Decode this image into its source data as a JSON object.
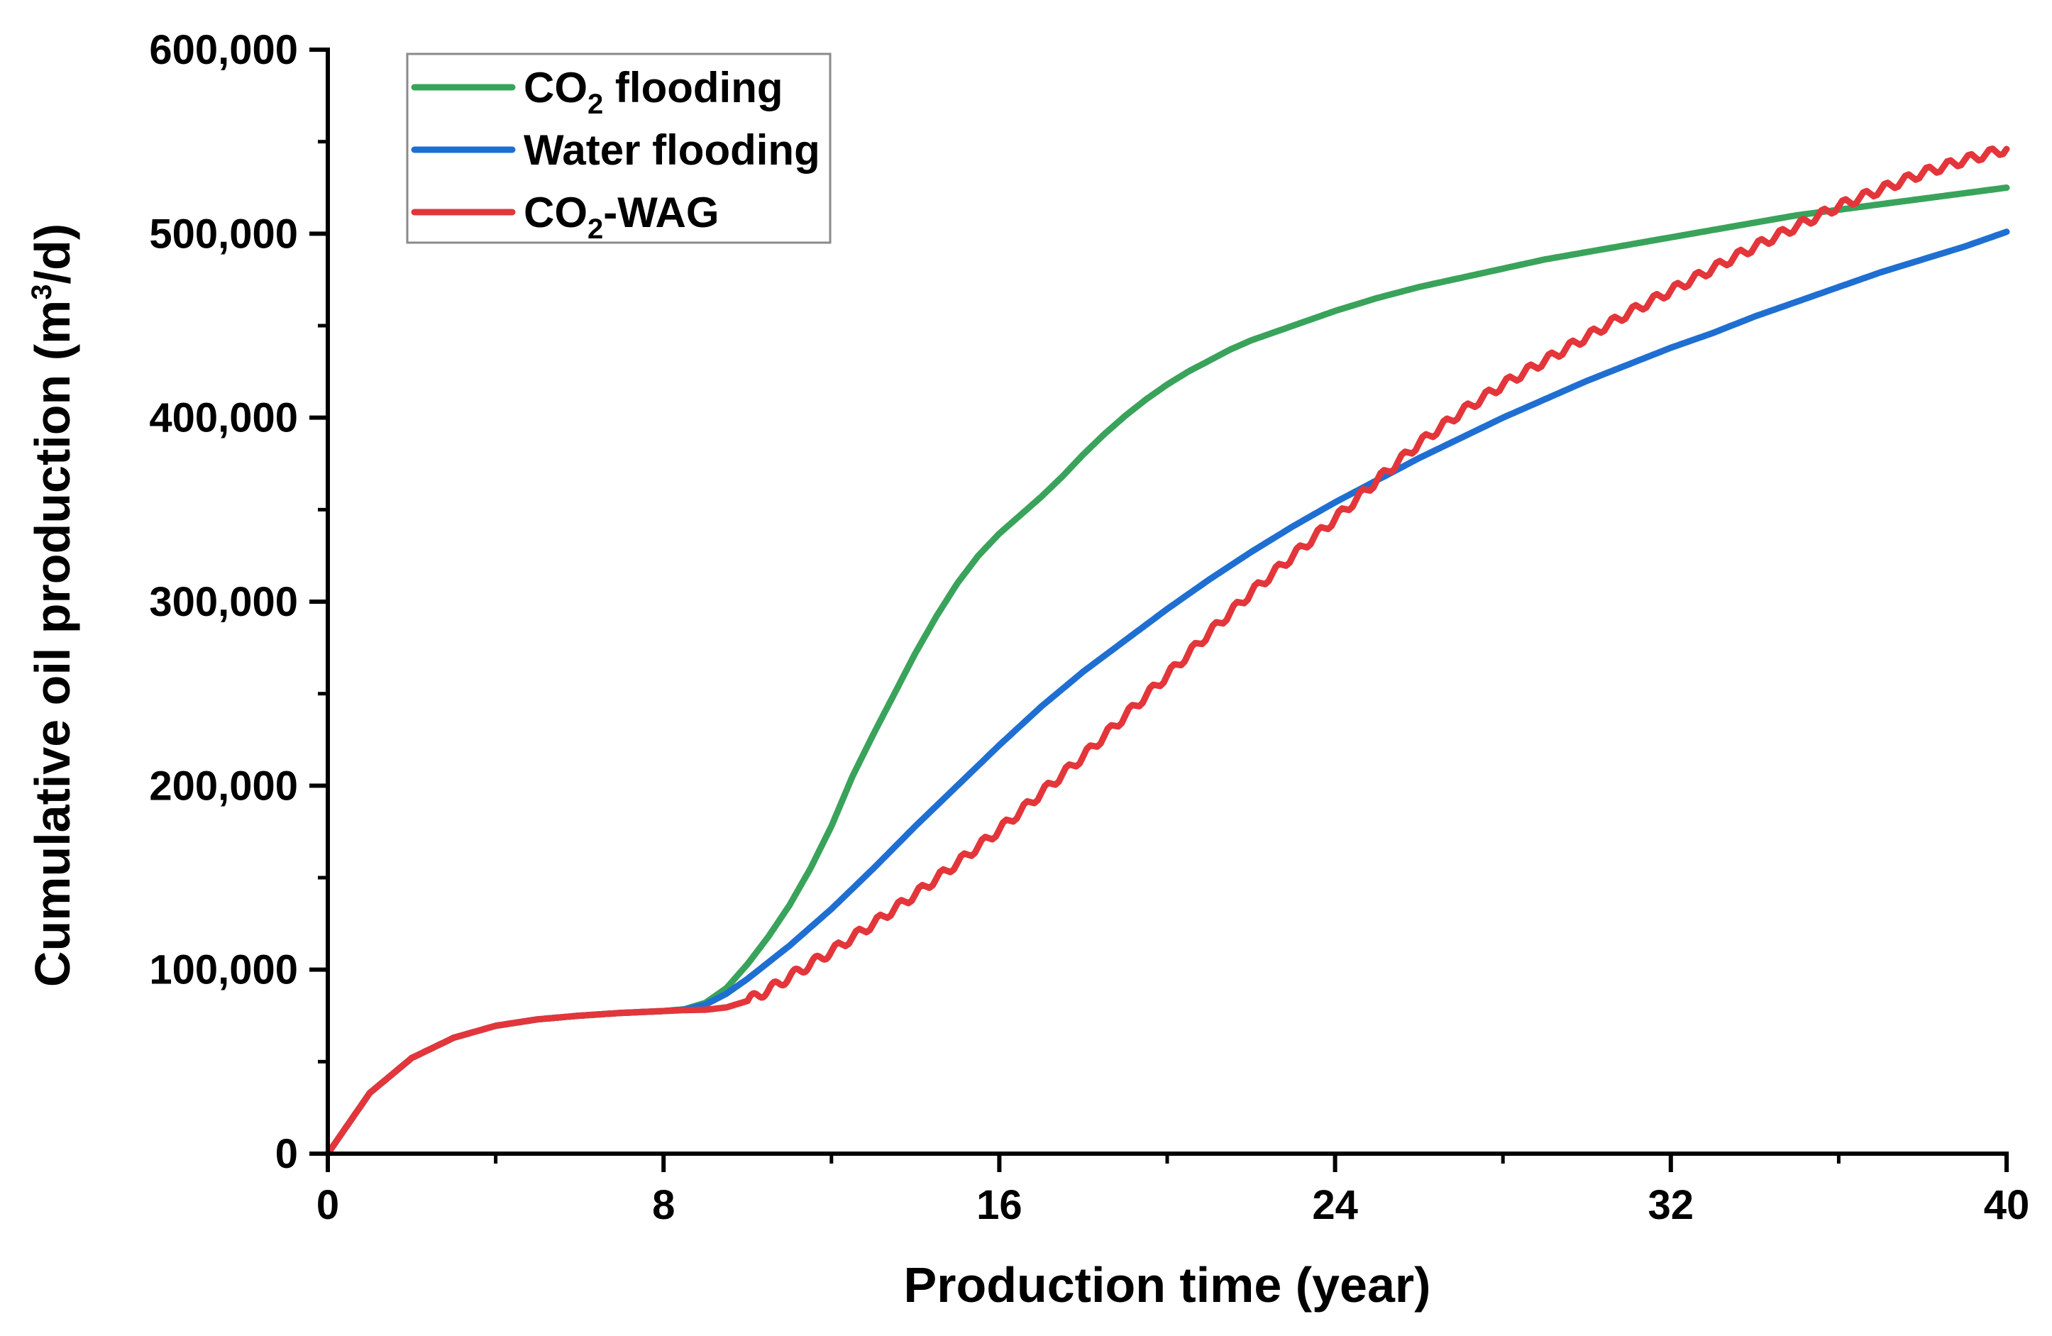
{
  "chart_data": {
    "type": "line",
    "title": "",
    "xlabel": "Production time (year)",
    "ylabel": {
      "main": "Cumulative oil production (m",
      "sup": "3",
      "tail": "/d)"
    },
    "xlim": [
      0,
      40
    ],
    "ylim": [
      0,
      600000
    ],
    "x_ticks": [
      0,
      8,
      16,
      24,
      32,
      40
    ],
    "x_tick_labels": [
      "0",
      "8",
      "16",
      "24",
      "32",
      "40"
    ],
    "y_ticks": [
      0,
      100000,
      200000,
      300000,
      400000,
      500000,
      600000
    ],
    "y_tick_labels": [
      "0",
      "100,000",
      "200,000",
      "300,000",
      "400,000",
      "500,000",
      "600,000"
    ],
    "grid": false,
    "legend_position": "top-left",
    "series": [
      {
        "name": "CO2 flooding",
        "legend_parts": {
          "pre": "CO",
          "sub": "2",
          "post": " flooding"
        },
        "color": "#3aa35b",
        "x": [
          0,
          1,
          2,
          3,
          4,
          5,
          6,
          7,
          8,
          8.5,
          9,
          9.5,
          10,
          10.5,
          11,
          11.5,
          12,
          12.5,
          13,
          13.5,
          14,
          14.5,
          15,
          15.5,
          16,
          16.5,
          17,
          17.5,
          18,
          18.5,
          19,
          19.5,
          20,
          20.5,
          21,
          21.5,
          22,
          23,
          24,
          25,
          26,
          27,
          28,
          29,
          30,
          31,
          32,
          33,
          34,
          35,
          36,
          37,
          38,
          39,
          40
        ],
        "values": [
          0,
          33000,
          52000,
          63000,
          69500,
          73000,
          75000,
          76500,
          77500,
          78500,
          82000,
          90000,
          103000,
          118000,
          135000,
          155000,
          178000,
          205000,
          228000,
          250000,
          272000,
          292000,
          310000,
          325000,
          337000,
          347000,
          357000,
          368000,
          380000,
          391000,
          401000,
          410000,
          418000,
          425000,
          431000,
          437000,
          442000,
          450000,
          458000,
          465000,
          471000,
          476000,
          481000,
          486000,
          490000,
          494000,
          498000,
          502000,
          506000,
          510000,
          513000,
          516000,
          519000,
          522000,
          525000
        ]
      },
      {
        "name": "Water flooding",
        "legend_parts": {
          "pre": "Water flooding",
          "sub": "",
          "post": ""
        },
        "color": "#1f6fd2",
        "x": [
          0,
          1,
          2,
          3,
          4,
          5,
          6,
          7,
          8,
          8.5,
          9,
          9.5,
          10,
          11,
          12,
          13,
          14,
          15,
          16,
          17,
          18,
          19,
          20,
          21,
          22,
          23,
          24,
          25,
          26,
          27,
          28,
          29,
          30,
          31,
          32,
          33,
          34,
          35,
          36,
          37,
          38,
          39,
          40
        ],
        "values": [
          0,
          33000,
          52000,
          63000,
          69500,
          73000,
          75000,
          76500,
          77500,
          78300,
          81000,
          87000,
          95000,
          113000,
          133000,
          155000,
          178000,
          200000,
          222000,
          243000,
          262000,
          279000,
          296000,
          312000,
          327000,
          341000,
          354000,
          366000,
          378000,
          389000,
          400000,
          410000,
          420000,
          429000,
          438000,
          446000,
          455000,
          463000,
          471000,
          479000,
          486000,
          493000,
          501000
        ]
      },
      {
        "name": "CO2-WAG",
        "legend_parts": {
          "pre": "CO",
          "sub": "2",
          "post": "-WAG"
        },
        "color": "#e3363b",
        "x": [
          0,
          1,
          2,
          3,
          4,
          5,
          6,
          7,
          8,
          8.5,
          9,
          9.5,
          10,
          10.5,
          11,
          11.5,
          12,
          13,
          14,
          15,
          16,
          17,
          18,
          19,
          20,
          21,
          22,
          23,
          24,
          25,
          26,
          27,
          28,
          29,
          30,
          31,
          32,
          33,
          34,
          35,
          36,
          37,
          38,
          39,
          40
        ],
        "values": [
          0,
          33000,
          52000,
          63000,
          69500,
          73000,
          75000,
          76500,
          77500,
          78000,
          78200,
          79500,
          83000,
          89000,
          96000,
          103000,
          110000,
          125000,
          141000,
          158000,
          176000,
          196000,
          216000,
          238000,
          260000,
          283000,
          305000,
          325000,
          345000,
          366000,
          386000,
          403000,
          418000,
          431000,
          444000,
          457000,
          469000,
          481000,
          493000,
          504000,
          515000,
          524000,
          533000,
          540000,
          546000
        ],
        "ripple": true
      }
    ]
  }
}
